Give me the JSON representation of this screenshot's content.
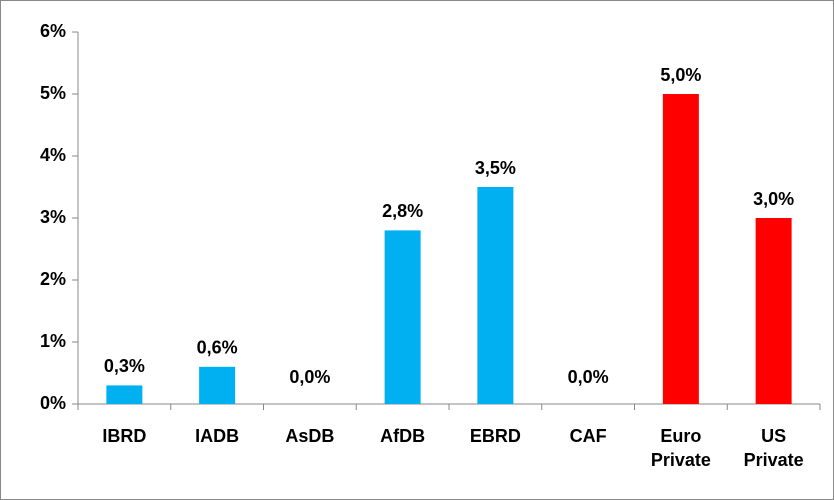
{
  "chart_data": {
    "type": "bar",
    "categories": [
      "IBRD",
      "IADB",
      "AsDB",
      "AfDB",
      "EBRD",
      "CAF",
      "Euro Private",
      "US Private"
    ],
    "values": [
      0.3,
      0.6,
      0,
      2.8,
      3.5,
      0,
      5,
      3
    ],
    "value_labels": [
      "0,3%",
      "0,6%",
      "0,0%",
      "2,8%",
      "3,5%",
      "0,0%",
      "5,0%",
      "3,0%"
    ],
    "colors": [
      "#00b0f0",
      "#00b0f0",
      "#00b0f0",
      "#00b0f0",
      "#00b0f0",
      "#00b0f0",
      "#ff0000",
      "#ff0000"
    ],
    "ylim": [
      0,
      6
    ],
    "yticks": [
      {
        "value": 0,
        "label": "0%"
      },
      {
        "value": 1,
        "label": "1%"
      },
      {
        "value": 2,
        "label": "2%"
      },
      {
        "value": 3,
        "label": "3%"
      },
      {
        "value": 4,
        "label": "4%"
      },
      {
        "value": 5,
        "label": "5%"
      },
      {
        "value": 6,
        "label": "6%"
      }
    ],
    "grid": false
  }
}
